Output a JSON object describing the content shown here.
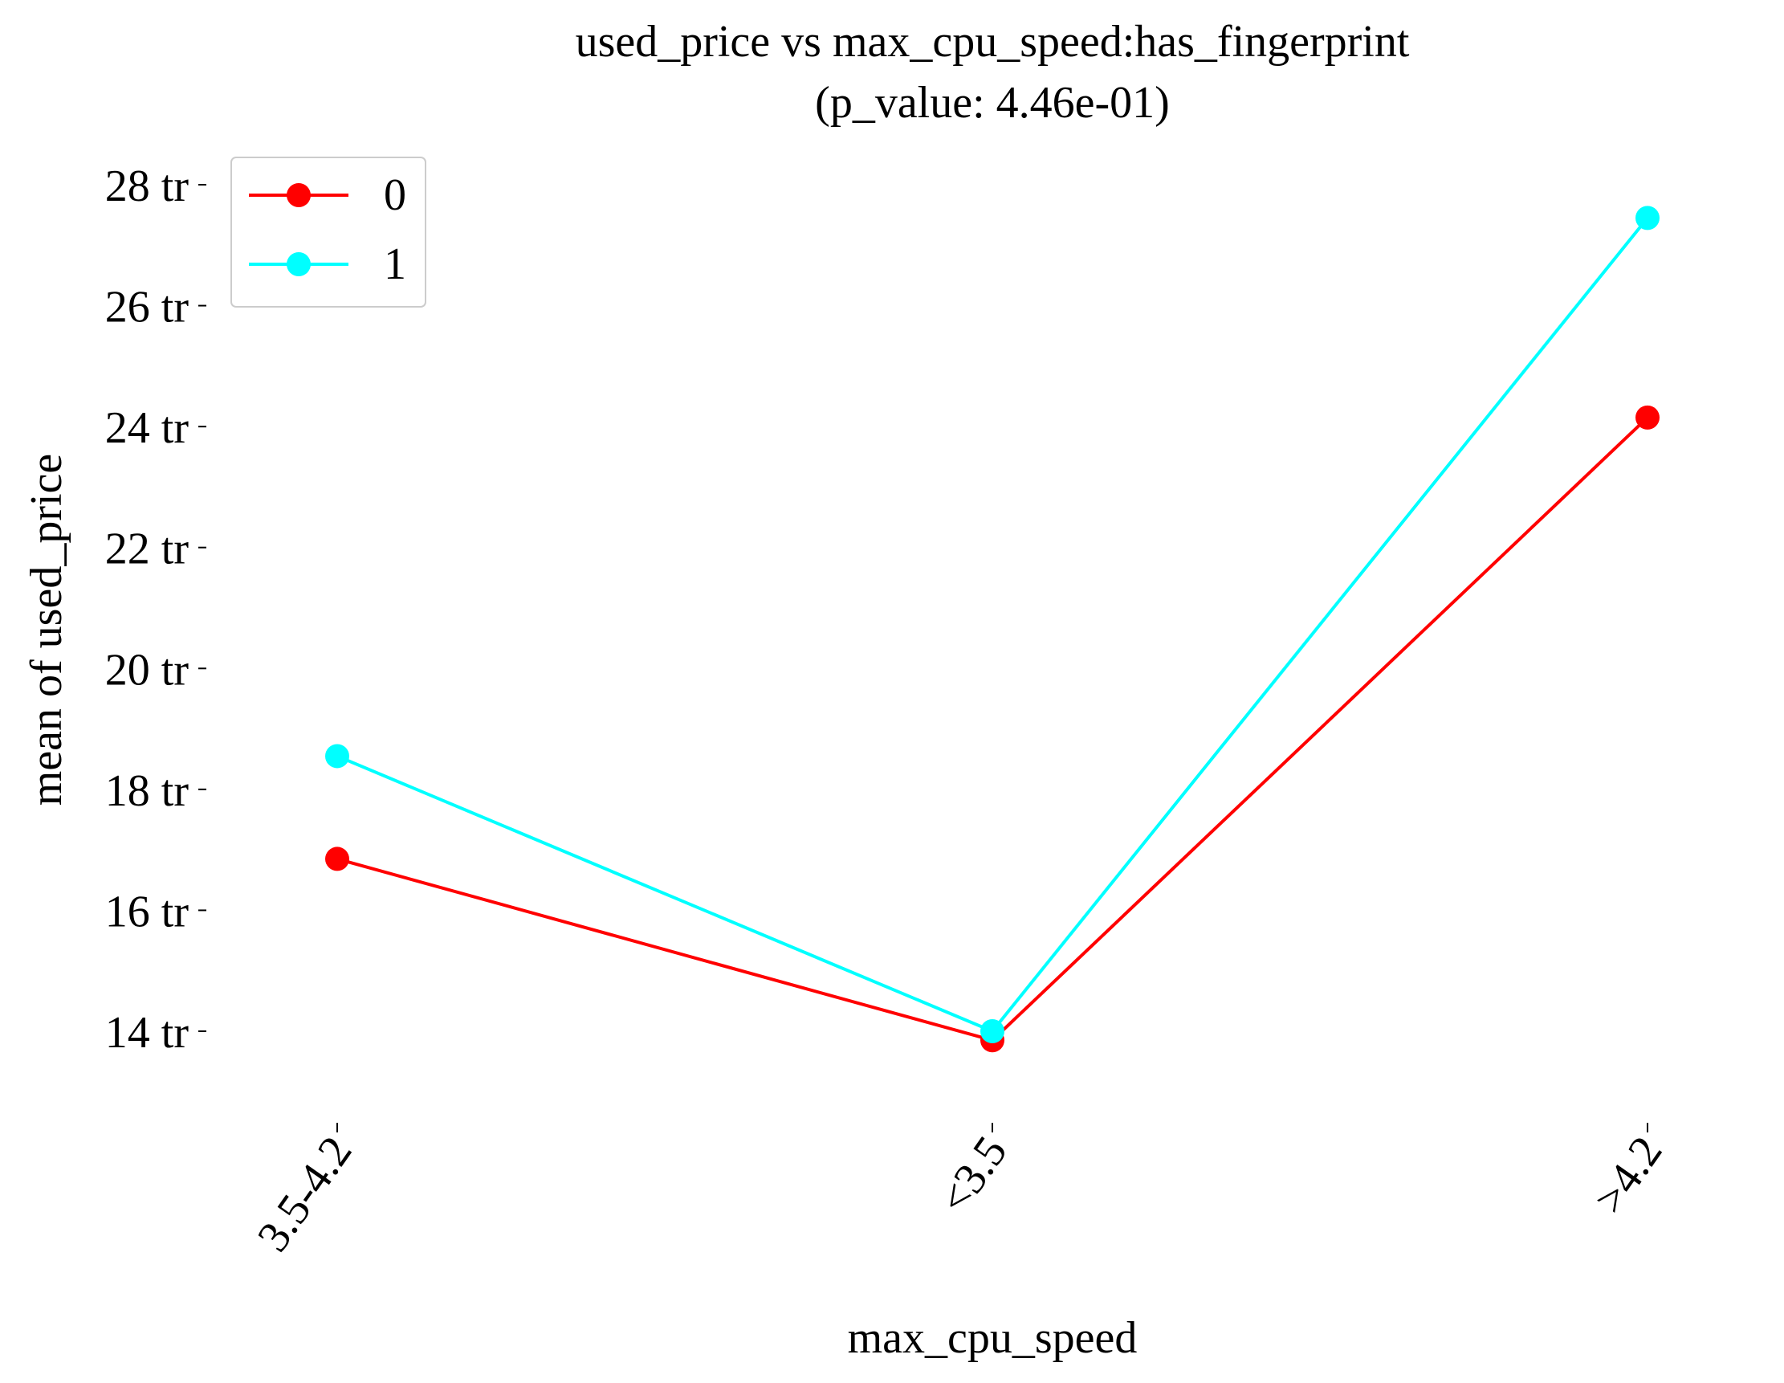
{
  "chart_data": {
    "type": "line",
    "title": "used_price vs max_cpu_speed:has_fingerprint",
    "subtitle": "(p_value: 4.46e-01)",
    "xlabel": "max_cpu_speed",
    "ylabel": "mean of used_price",
    "categories": [
      "3.5-4.2",
      "<3.5",
      ">4.2"
    ],
    "y_ticks": [
      14,
      16,
      18,
      20,
      22,
      24,
      26,
      28
    ],
    "y_tick_labels": [
      "14 tr",
      "16 tr",
      "18 tr",
      "20 tr",
      "22 tr",
      "24 tr",
      "26 tr",
      "28 tr"
    ],
    "ylim": [
      12.5,
      28.7
    ],
    "grid": false,
    "legend_position": "top-left",
    "series": [
      {
        "name": "0",
        "color": "#ff0000",
        "values": [
          16.85,
          13.85,
          24.15
        ]
      },
      {
        "name": "1",
        "color": "#00ffff",
        "values": [
          18.55,
          14.0,
          27.45
        ]
      }
    ]
  }
}
